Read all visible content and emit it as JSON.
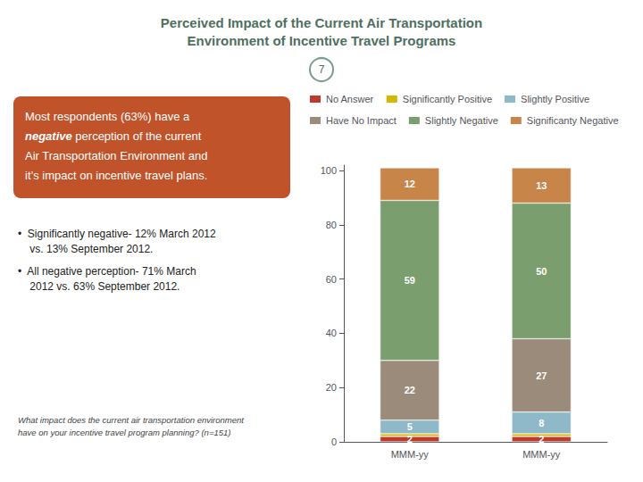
{
  "chart_data": {
    "type": "bar",
    "title": "Perceived Impact of the Current Air Transportation\nEnvironment of Incentive Travel Programs",
    "categories": [
      "MMM-yy",
      "MMM-yy"
    ],
    "series": [
      {
        "name": "No Answer",
        "color": "#c0392b",
        "values": [
          2,
          2
        ]
      },
      {
        "name": "Significantly Positive",
        "color": "#d4b800",
        "values": [
          1,
          1
        ],
        "data_labels": false
      },
      {
        "name": "Slightly Positive",
        "color": "#8fb8c8",
        "values": [
          5,
          8
        ]
      },
      {
        "name": "Have No Impact",
        "color": "#9b8b7a",
        "values": [
          22,
          27
        ]
      },
      {
        "name": "Slightly Negative",
        "color": "#7a9e6e",
        "values": [
          59,
          50
        ]
      },
      {
        "name": "Significanty Negative",
        "color": "#c8854a",
        "values": [
          12,
          13
        ]
      }
    ],
    "stacked": true,
    "data_labels": true,
    "ylim": [
      0,
      102
    ],
    "yticks": [
      0,
      20,
      40,
      60,
      80,
      100
    ],
    "grid": false,
    "legend": "top",
    "annotations": [
      [
        "7"
      ],
      [
        "Most respondents (63%) have a",
        [
          "negative",
          " perception of the current"
        ],
        "Air Transportation Environment and",
        "it’s impact on incentive travel plans."
      ],
      [
        "•  Significantly negative- 12% March 2012",
        "    vs. 13% September 2012.",
        "•  All negative perception- 71% March",
        "    2012 vs. 63% September 2012."
      ],
      [
        "What impact does the current air transportation environment",
        "have on your incentive travel program planning? (n=151)"
      ]
    ]
  }
}
